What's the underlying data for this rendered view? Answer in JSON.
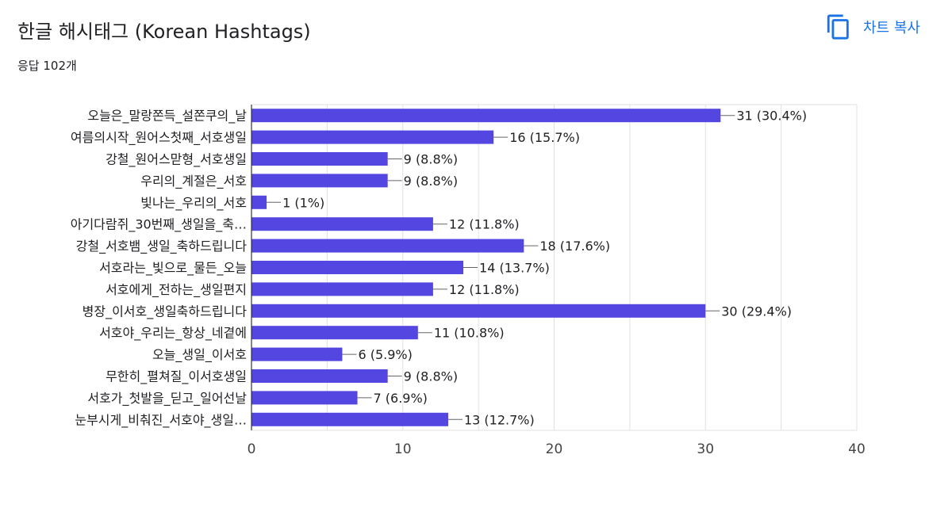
{
  "header": {
    "title": "한글 해시태그 (Korean Hashtags)",
    "response_count": "응답 102개",
    "copy_button_label": "차트 복사",
    "copy_icon": "copy-icon"
  },
  "colors": {
    "bar": "#5446e0",
    "accent": "#1a73e8",
    "grid": "#e0e0e0",
    "text": "#202124"
  },
  "chart_data": {
    "type": "bar",
    "orientation": "horizontal",
    "categories": [
      "오늘은_말랑쫀득_설쫀쿠의_날",
      "여름의시작_원어스첫째_서호생일",
      "강철_원어스맏형_서호생일",
      "우리의_계절은_서호",
      "빛나는_우리의_서호",
      "아기다람쥐_30번째_생일을_축…",
      "강철_서호뱀_생일_축하드립니다",
      "서호라는_빛으로_물든_오늘",
      "서호에게_전하는_생일편지",
      "병장_이서호_생일축하드립니다",
      "서호야_우리는_항상_네곁에",
      "오늘_생일_이서호",
      "무한히_펼쳐질_이서호생일",
      "서호가_첫발을_딛고_일어선날",
      "눈부시게_비춰진_서호야_생일…"
    ],
    "values": [
      31,
      16,
      9,
      9,
      1,
      12,
      18,
      14,
      12,
      30,
      11,
      6,
      9,
      7,
      13
    ],
    "value_labels": [
      "31 (30.4%)",
      "16 (15.7%)",
      "9 (8.8%)",
      "9 (8.8%)",
      "1 (1%)",
      "12 (11.8%)",
      "18 (17.6%)",
      "14 (13.7%)",
      "12 (11.8%)",
      "30 (29.4%)",
      "11 (10.8%)",
      "6 (5.9%)",
      "9 (8.8%)",
      "7 (6.9%)",
      "13 (12.7%)"
    ],
    "xlim": [
      0,
      40
    ],
    "xticks": [
      "0",
      "10",
      "20",
      "30",
      "40"
    ],
    "grid": true
  }
}
